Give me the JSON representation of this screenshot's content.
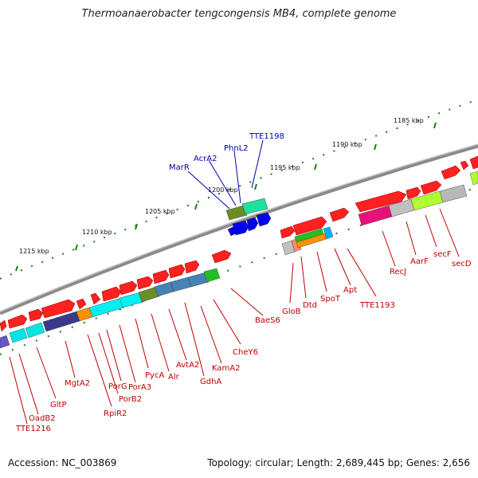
{
  "title": "Thermoanaerobacter tengcongensis MB4, complete genome",
  "footer": {
    "accession": "Accession: NC_003869",
    "summary": "Topology: circular; Length: 2,689,445 bp; Genes: 2,656"
  },
  "scale_labels": [
    "1185 kbp",
    "1190 kbp",
    "1195 kbp",
    "1200 kbp",
    "1205 kbp",
    "1210 kbp",
    "1215 kbp"
  ],
  "genes_top": [
    "MarR",
    "AcrA2",
    "PhnL2",
    "TTE1198"
  ],
  "genes_bottom": [
    "GloB",
    "Dtd",
    "SpoT",
    "Apt",
    "TTE1193",
    "RecJ",
    "AarF",
    "secF",
    "secD",
    "BaeS6",
    "CheY6",
    "KamA2",
    "GdhA",
    "AvtA2",
    "Alr",
    "PycA",
    "PorA3",
    "PorG",
    "PorB2",
    "RpiR2",
    "MgtA2",
    "GltP",
    "OadB2",
    "TTE1216"
  ],
  "colors": {
    "backbone": "#888888",
    "tick": "#1a7a1a",
    "forward": "#ff0000",
    "reverse_blue": "#0000ee",
    "label_red": "#c00000",
    "label_blue": "#0000b0"
  }
}
